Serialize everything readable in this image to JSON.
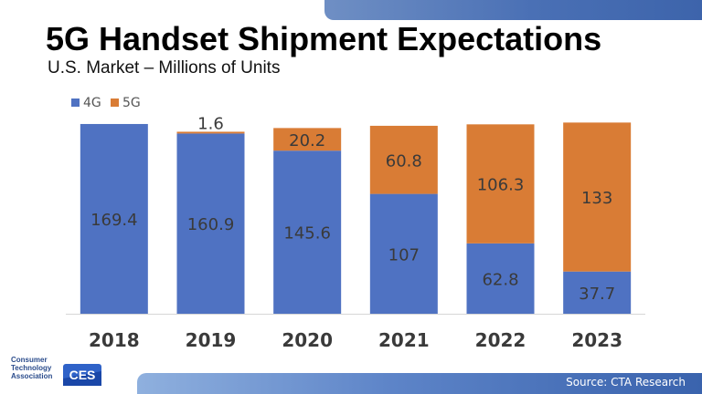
{
  "slide": {
    "title": "5G Handset Shipment Expectations",
    "subtitle": "U.S. Market – Millions of Units",
    "source": "Source: CTA Research",
    "logo": {
      "line1": "Consumer",
      "line2": "Technology",
      "line3": "Association",
      "badge": "CES"
    }
  },
  "colors": {
    "series_4g": "#4f72c2",
    "series_5g": "#d97c35",
    "accent_band": "#3d64ab"
  },
  "chart_data": {
    "type": "bar",
    "stacked": true,
    "categories": [
      "2018",
      "2019",
      "2020",
      "2021",
      "2022",
      "2023"
    ],
    "series": [
      {
        "name": "4G",
        "values": [
          169.4,
          160.9,
          145.6,
          107,
          62.8,
          37.7
        ]
      },
      {
        "name": "5G",
        "values": [
          0,
          1.6,
          20.2,
          60.8,
          106.3,
          133
        ]
      }
    ],
    "data_labels": {
      "4G": [
        "169.4",
        "160.9",
        "145.6",
        "107",
        "62.8",
        "37.7"
      ],
      "5G": [
        "",
        "1.6",
        "20.2",
        "60.8",
        "106.3",
        "133"
      ]
    },
    "ylim": [
      0,
      171
    ],
    "legend": "top-left",
    "grid": false
  }
}
